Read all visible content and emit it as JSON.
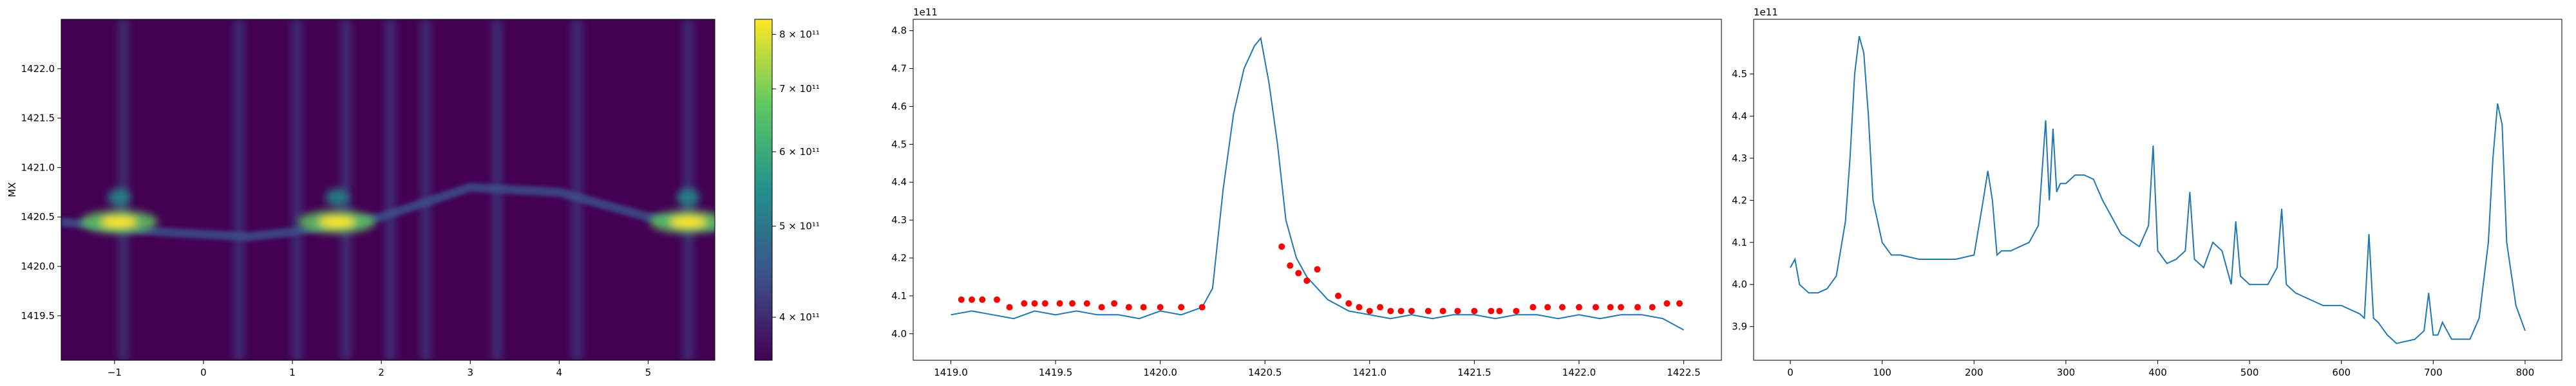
{
  "figure": {
    "background": "#ffffff"
  },
  "chart_data": [
    {
      "type": "heatmap",
      "ylabel": "MX",
      "xlim": [
        -1.6,
        5.75
      ],
      "ylim": [
        1419.05,
        1422.5
      ],
      "xticks": [
        -1,
        0,
        1,
        2,
        3,
        4,
        5
      ],
      "xtick_labels": [
        "−1",
        "0",
        "1",
        "2",
        "3",
        "4",
        "5"
      ],
      "yticks": [
        1419.5,
        1420.0,
        1420.5,
        1421.0,
        1421.5,
        1422.0
      ],
      "ytick_labels": [
        "1419.5",
        "1420.0",
        "1420.5",
        "1421.0",
        "1421.5",
        "1422.0"
      ],
      "colormap": "viridis",
      "colormap_colors": [
        "#440154",
        "#3b528b",
        "#21918c",
        "#5ec962",
        "#fde725"
      ],
      "vertical_bands_x": [
        -0.9,
        0.4,
        1.05,
        1.6,
        2.1,
        2.5,
        3.3,
        4.2,
        5.45
      ],
      "bright_spots": [
        {
          "x": -0.95,
          "y": 1420.45
        },
        {
          "x": 1.5,
          "y": 1420.45
        },
        {
          "x": 5.45,
          "y": 1420.45
        }
      ],
      "ridge": {
        "x": [
          -1.6,
          -0.5,
          0.5,
          1.0,
          2.0,
          3.0,
          4.0,
          5.0,
          5.75
        ],
        "y": [
          1420.45,
          1420.35,
          1420.3,
          1420.35,
          1420.5,
          1420.8,
          1420.75,
          1420.5,
          1420.4
        ]
      },
      "grid": false
    },
    {
      "type": "colorbar",
      "label_scale": "log",
      "range": [
        360000000000.0,
        830000000000.0
      ],
      "ticks": [
        400000000000.0,
        500000000000.0,
        600000000000.0,
        700000000000.0,
        800000000000.0
      ],
      "tick_labels": [
        "4 × 10¹¹",
        "5 × 10¹¹",
        "6 × 10¹¹",
        "7 × 10¹¹",
        "8 × 10¹¹"
      ]
    },
    {
      "type": "line",
      "offset_text": "1e11",
      "xlim": [
        1418.82,
        1422.68
      ],
      "ylim": [
        3.93,
        4.83
      ],
      "xticks": [
        1419.0,
        1419.5,
        1420.0,
        1420.5,
        1421.0,
        1421.5,
        1422.0,
        1422.5
      ],
      "xtick_labels": [
        "1419.0",
        "1419.5",
        "1420.0",
        "1420.5",
        "1421.0",
        "1421.5",
        "1422.0",
        "1422.5"
      ],
      "yticks": [
        4.0,
        4.1,
        4.2,
        4.3,
        4.4,
        4.5,
        4.6,
        4.7,
        4.8
      ],
      "ytick_labels": [
        "4.0",
        "4.1",
        "4.2",
        "4.3",
        "4.4",
        "4.5",
        "4.6",
        "4.7",
        "4.8"
      ],
      "line_color": "#1f77b4",
      "marker_color": "#ff0000",
      "x_range": [
        1419.0,
        1422.5
      ],
      "peak": {
        "x": 1420.48,
        "y": 4.78
      },
      "baseline": 4.05,
      "series": [
        {
          "x": [
            1419.0,
            1419.1,
            1419.2,
            1419.3,
            1419.4,
            1419.5,
            1419.6,
            1419.7,
            1419.8,
            1419.9,
            1420.0,
            1420.1,
            1420.2,
            1420.25,
            1420.3,
            1420.35,
            1420.4,
            1420.45,
            1420.48,
            1420.52,
            1420.56,
            1420.6,
            1420.65,
            1420.7,
            1420.75,
            1420.8,
            1420.9,
            1421.0,
            1421.1,
            1421.2,
            1421.3,
            1421.4,
            1421.5,
            1421.6,
            1421.7,
            1421.8,
            1421.9,
            1422.0,
            1422.1,
            1422.2,
            1422.3,
            1422.4,
            1422.5
          ],
          "y": [
            4.05,
            4.06,
            4.05,
            4.04,
            4.06,
            4.05,
            4.06,
            4.05,
            4.05,
            4.04,
            4.06,
            4.05,
            4.07,
            4.12,
            4.38,
            4.58,
            4.7,
            4.76,
            4.78,
            4.66,
            4.5,
            4.3,
            4.2,
            4.15,
            4.12,
            4.09,
            4.06,
            4.05,
            4.04,
            4.05,
            4.04,
            4.05,
            4.05,
            4.04,
            4.05,
            4.05,
            4.04,
            4.05,
            4.04,
            4.05,
            4.05,
            4.04,
            4.01
          ]
        }
      ],
      "markers": {
        "x": [
          1419.05,
          1419.1,
          1419.15,
          1419.22,
          1419.28,
          1419.35,
          1419.4,
          1419.45,
          1419.52,
          1419.58,
          1419.65,
          1419.72,
          1419.78,
          1419.85,
          1419.92,
          1420.0,
          1420.1,
          1420.2,
          1420.58,
          1420.62,
          1420.66,
          1420.7,
          1420.75,
          1420.85,
          1420.9,
          1420.95,
          1421.0,
          1421.05,
          1421.1,
          1421.15,
          1421.2,
          1421.28,
          1421.35,
          1421.42,
          1421.5,
          1421.58,
          1421.62,
          1421.7,
          1421.78,
          1421.85,
          1421.92,
          1422.0,
          1422.08,
          1422.15,
          1422.2,
          1422.28,
          1422.35,
          1422.42,
          1422.48
        ],
        "y": [
          4.09,
          4.09,
          4.09,
          4.09,
          4.07,
          4.08,
          4.08,
          4.08,
          4.08,
          4.08,
          4.08,
          4.07,
          4.08,
          4.07,
          4.07,
          4.07,
          4.07,
          4.07,
          4.23,
          4.18,
          4.16,
          4.14,
          4.17,
          4.1,
          4.08,
          4.07,
          4.06,
          4.07,
          4.06,
          4.06,
          4.06,
          4.06,
          4.06,
          4.06,
          4.06,
          4.06,
          4.06,
          4.06,
          4.07,
          4.07,
          4.07,
          4.07,
          4.07,
          4.07,
          4.07,
          4.07,
          4.07,
          4.08,
          4.08
        ]
      },
      "grid": false
    },
    {
      "type": "line",
      "offset_text": "1e11",
      "xlim": [
        -40,
        840
      ],
      "ylim": [
        3.82,
        4.63
      ],
      "xticks": [
        0,
        100,
        200,
        300,
        400,
        500,
        600,
        700,
        800
      ],
      "xtick_labels": [
        "0",
        "100",
        "200",
        "300",
        "400",
        "500",
        "600",
        "700",
        "800"
      ],
      "yticks": [
        3.9,
        4.0,
        4.1,
        4.2,
        4.3,
        4.4,
        4.5
      ],
      "ytick_labels": [
        "3.9",
        "4.0",
        "4.1",
        "4.2",
        "4.3",
        "4.4",
        "4.5"
      ],
      "line_color": "#1f77b4",
      "series": [
        {
          "x": [
            0,
            5,
            10,
            20,
            30,
            40,
            50,
            60,
            65,
            70,
            75,
            80,
            85,
            90,
            100,
            110,
            120,
            140,
            160,
            180,
            200,
            210,
            215,
            220,
            225,
            230,
            240,
            250,
            260,
            270,
            278,
            282,
            286,
            290,
            294,
            300,
            310,
            320,
            330,
            340,
            350,
            360,
            380,
            390,
            395,
            400,
            410,
            420,
            430,
            435,
            440,
            450,
            460,
            470,
            480,
            485,
            490,
            500,
            520,
            530,
            535,
            540,
            550,
            560,
            580,
            600,
            620,
            625,
            630,
            635,
            640,
            650,
            660,
            680,
            690,
            695,
            700,
            705,
            710,
            720,
            740,
            750,
            760,
            765,
            770,
            775,
            780,
            790,
            800
          ],
          "y": [
            4.04,
            4.06,
            4.0,
            3.98,
            3.98,
            3.99,
            4.02,
            4.15,
            4.3,
            4.5,
            4.59,
            4.55,
            4.4,
            4.2,
            4.1,
            4.07,
            4.07,
            4.06,
            4.06,
            4.06,
            4.07,
            4.2,
            4.27,
            4.2,
            4.07,
            4.08,
            4.08,
            4.09,
            4.1,
            4.14,
            4.39,
            4.2,
            4.37,
            4.22,
            4.24,
            4.24,
            4.26,
            4.26,
            4.25,
            4.2,
            4.16,
            4.12,
            4.09,
            4.14,
            4.33,
            4.08,
            4.05,
            4.06,
            4.08,
            4.22,
            4.06,
            4.04,
            4.1,
            4.08,
            4.0,
            4.15,
            4.02,
            4.0,
            4.0,
            4.04,
            4.18,
            4.0,
            3.98,
            3.97,
            3.95,
            3.95,
            3.93,
            3.92,
            4.12,
            3.92,
            3.91,
            3.88,
            3.86,
            3.87,
            3.89,
            3.98,
            3.88,
            3.88,
            3.91,
            3.87,
            3.87,
            3.92,
            4.1,
            4.3,
            4.43,
            4.38,
            4.1,
            3.95,
            3.89
          ]
        }
      ],
      "grid": false
    }
  ]
}
